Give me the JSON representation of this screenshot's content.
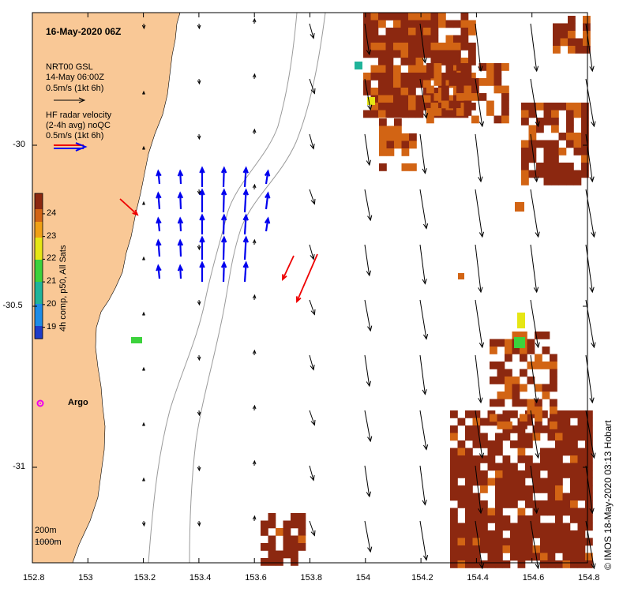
{
  "title": "16-May-2020 06Z",
  "legend": {
    "gsl_title": "NRT00 GSL",
    "gsl_date": "14-May 06:00Z",
    "gsl_scale": "0.5m/s (1kt 6h)",
    "hf_title": "HF radar velocity",
    "hf_sub": "(2-4h avg) noQC",
    "hf_scale": "0.5m/s (1kt 6h)"
  },
  "colorbar": {
    "label": "4h comp, p50, All Sats",
    "ticks": [
      "24",
      "23",
      "22",
      "21",
      "20",
      "19"
    ],
    "range": [
      18.5,
      24.9
    ]
  },
  "argo_label": "Argo",
  "isobaths": [
    "200m",
    "1000m"
  ],
  "credit": "© IMOS 18-May-2020 03:13 Hobart",
  "x_ticks": [
    "152.8",
    "153",
    "153.2",
    "153.4",
    "153.6",
    "153.8",
    "154",
    "154.2",
    "154.4",
    "154.6",
    "154.8"
  ],
  "y_ticks": [
    "-30",
    "-30.5",
    "-31"
  ],
  "colors": {
    "land": "#f9c896",
    "hf_arrow": "#0000ee",
    "hf_arrow_qc": "#ee0000",
    "gsl_arrow": "#000000",
    "argo": "#ee00ee"
  }
}
